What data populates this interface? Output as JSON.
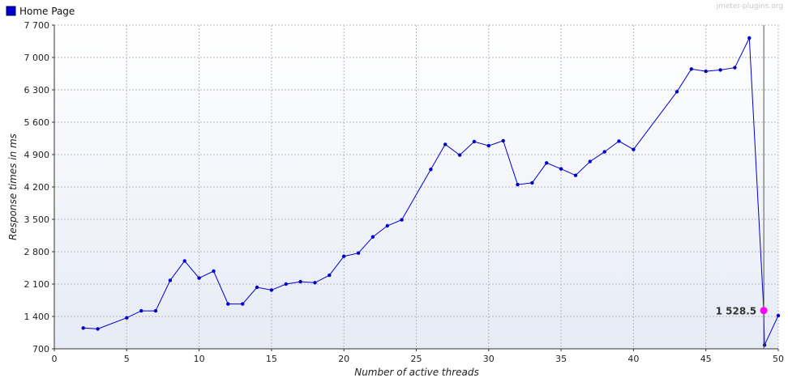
{
  "watermark": "jmeter-plugins.org",
  "chart_data": {
    "type": "line",
    "title": "",
    "xlabel": "Number of active threads",
    "ylabel": "Response times in ms",
    "xlim": [
      0,
      50
    ],
    "ylim": [
      700,
      7700
    ],
    "x_ticks": [
      0,
      5,
      10,
      15,
      20,
      25,
      30,
      35,
      40,
      45,
      50
    ],
    "y_ticks": [
      700,
      1400,
      2100,
      2800,
      3500,
      4200,
      4900,
      5600,
      6300,
      7000,
      7700
    ],
    "x_tick_labels": [
      "0",
      "5",
      "10",
      "15",
      "20",
      "25",
      "30",
      "35",
      "40",
      "45",
      "50"
    ],
    "y_tick_labels": [
      "700",
      "1 400",
      "2 100",
      "2 800",
      "3 500",
      "4 200",
      "4 900",
      "5 600",
      "6 300",
      "7 000",
      "7 700"
    ],
    "grid": true,
    "legend_position": "top-left",
    "series": [
      {
        "name": "Home Page",
        "color": "#0000cc",
        "points": [
          [
            2,
            1150
          ],
          [
            3,
            1130
          ],
          [
            5,
            1370
          ],
          [
            6,
            1520
          ],
          [
            7,
            1520
          ],
          [
            8,
            2180
          ],
          [
            9,
            2600
          ],
          [
            10,
            2230
          ],
          [
            11,
            2380
          ],
          [
            12,
            1670
          ],
          [
            13,
            1670
          ],
          [
            14,
            2030
          ],
          [
            15,
            1970
          ],
          [
            16,
            2100
          ],
          [
            17,
            2150
          ],
          [
            18,
            2130
          ],
          [
            19,
            2290
          ],
          [
            20,
            2700
          ],
          [
            21,
            2770
          ],
          [
            22,
            3120
          ],
          [
            23,
            3360
          ],
          [
            24,
            3490
          ],
          [
            26,
            4580
          ],
          [
            27,
            5120
          ],
          [
            28,
            4890
          ],
          [
            29,
            5180
          ],
          [
            30,
            5090
          ],
          [
            31,
            5200
          ],
          [
            32,
            4250
          ],
          [
            33,
            4290
          ],
          [
            34,
            4720
          ],
          [
            35,
            4590
          ],
          [
            36,
            4450
          ],
          [
            37,
            4750
          ],
          [
            38,
            4960
          ],
          [
            39,
            5190
          ],
          [
            40,
            5010
          ],
          [
            43,
            6260
          ],
          [
            44,
            6750
          ],
          [
            45,
            6700
          ],
          [
            46,
            6730
          ],
          [
            47,
            6780
          ],
          [
            48,
            7420
          ],
          [
            49,
            1528.5
          ],
          [
            49.05,
            780
          ],
          [
            50,
            1420
          ]
        ]
      }
    ],
    "highlight": {
      "x": 49,
      "y": 1528.5,
      "label": "1 528.5",
      "color": "#ff00ff"
    }
  }
}
